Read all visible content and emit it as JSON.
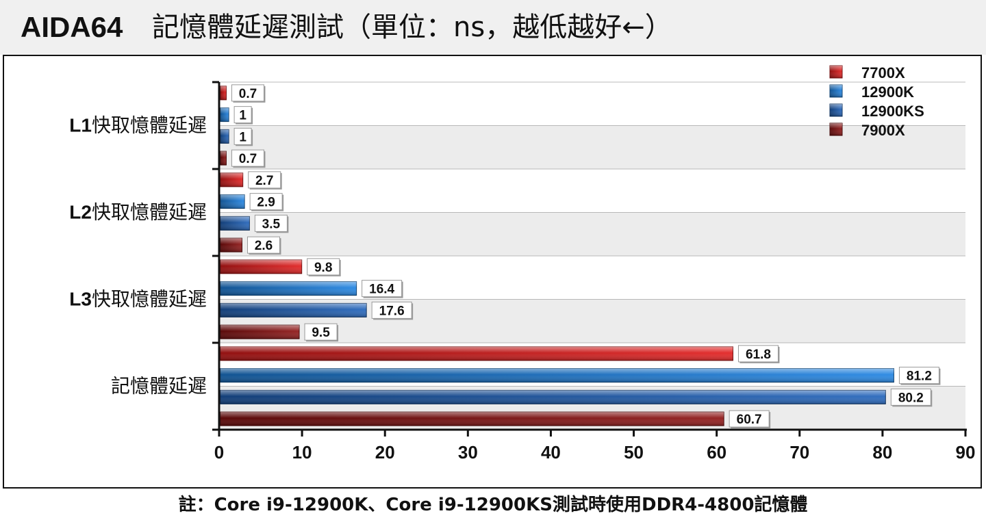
{
  "header": {
    "title_latin": "AIDA64",
    "title_main": "記憶體延遲測試（單位：ns，越低越好←）"
  },
  "footnote": "註：Core i9-12900K、Core i9-12900KS測試時使用DDR4-4800記憶體",
  "colors": {
    "7700X": "#e01818",
    "12900K": "#1a7fe0",
    "12900KS": "#1c5fb8",
    "7900X": "#8a0e0e"
  },
  "chart_data": {
    "type": "bar",
    "orientation": "horizontal",
    "categories": [
      "L1快取憶體延遲",
      "L2快取憶體延遲",
      "L3快取憶體延遲",
      "記憶體延遲"
    ],
    "series": [
      {
        "name": "7700X",
        "values": [
          0.7,
          2.7,
          9.8,
          61.8
        ]
      },
      {
        "name": "12900K",
        "values": [
          1,
          2.9,
          16.4,
          81.2
        ]
      },
      {
        "name": "12900KS",
        "values": [
          1,
          3.5,
          17.6,
          80.2
        ]
      },
      {
        "name": "7900X",
        "values": [
          0.7,
          2.6,
          9.5,
          60.7
        ]
      }
    ],
    "xlim": [
      0,
      90
    ],
    "xticks": [
      "0",
      "10",
      "20",
      "30",
      "40",
      "50",
      "60",
      "70",
      "80",
      "90"
    ],
    "legend_position": "top-right",
    "grid": true
  }
}
